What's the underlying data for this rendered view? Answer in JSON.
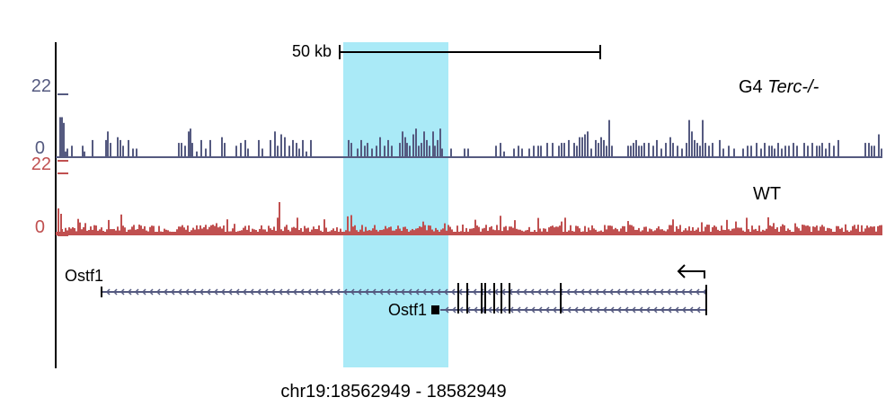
{
  "scale_bar": {
    "label": "50 kb"
  },
  "tracks": [
    {
      "name": "G4",
      "name_italic": "Terc-/-",
      "y_max_label": "22",
      "y_min_label": "0",
      "color": "#555a80",
      "y_max": 22,
      "bars": [
        [
          66,
          14
        ],
        [
          68,
          14
        ],
        [
          70,
          12
        ],
        [
          72,
          2
        ],
        [
          74,
          3
        ],
        [
          79,
          4
        ],
        [
          91,
          4
        ],
        [
          93,
          2
        ],
        [
          102,
          6
        ],
        [
          117,
          6
        ],
        [
          119,
          9
        ],
        [
          122,
          5
        ],
        [
          130,
          7
        ],
        [
          133,
          6
        ],
        [
          136,
          4
        ],
        [
          142,
          6
        ],
        [
          147,
          3
        ],
        [
          151,
          3
        ],
        [
          198,
          5
        ],
        [
          201,
          5
        ],
        [
          205,
          4
        ],
        [
          209,
          9
        ],
        [
          211,
          10
        ],
        [
          213,
          5
        ],
        [
          218,
          2
        ],
        [
          223,
          6
        ],
        [
          228,
          3
        ],
        [
          233,
          6
        ],
        [
          246,
          7
        ],
        [
          249,
          5
        ],
        [
          262,
          4
        ],
        [
          267,
          5
        ],
        [
          272,
          6
        ],
        [
          275,
          3
        ],
        [
          287,
          6
        ],
        [
          291,
          3
        ],
        [
          300,
          6
        ],
        [
          305,
          9
        ],
        [
          308,
          4
        ],
        [
          312,
          8
        ],
        [
          316,
          7
        ],
        [
          321,
          4
        ],
        [
          325,
          6
        ],
        [
          329,
          5
        ],
        [
          332,
          3
        ],
        [
          336,
          6
        ],
        [
          340,
          2
        ],
        [
          345,
          6
        ],
        [
          387,
          6
        ],
        [
          390,
          5
        ],
        [
          397,
          3
        ],
        [
          401,
          6
        ],
        [
          405,
          4
        ],
        [
          408,
          5
        ],
        [
          413,
          3
        ],
        [
          418,
          4
        ],
        [
          422,
          7
        ],
        [
          427,
          4
        ],
        [
          431,
          6
        ],
        [
          435,
          4
        ],
        [
          444,
          5
        ],
        [
          447,
          9
        ],
        [
          450,
          7
        ],
        [
          452,
          5
        ],
        [
          455,
          4
        ],
        [
          459,
          8
        ],
        [
          462,
          10
        ],
        [
          465,
          4
        ],
        [
          468,
          5
        ],
        [
          471,
          9
        ],
        [
          474,
          6
        ],
        [
          477,
          4
        ],
        [
          481,
          9
        ],
        [
          483,
          4
        ],
        [
          486,
          6
        ],
        [
          489,
          10
        ],
        [
          491,
          3
        ],
        [
          501,
          3
        ],
        [
          516,
          3
        ],
        [
          520,
          3
        ],
        [
          551,
          4
        ],
        [
          556,
          5
        ],
        [
          560,
          2
        ],
        [
          571,
          3
        ],
        [
          576,
          4
        ],
        [
          580,
          3
        ],
        [
          588,
          3
        ],
        [
          593,
          4
        ],
        [
          598,
          4
        ],
        [
          601,
          4
        ],
        [
          608,
          5
        ],
        [
          614,
          5
        ],
        [
          621,
          4
        ],
        [
          624,
          5
        ],
        [
          627,
          5
        ],
        [
          632,
          6
        ],
        [
          638,
          5
        ],
        [
          641,
          4
        ],
        [
          644,
          7
        ],
        [
          647,
          7
        ],
        [
          650,
          8
        ],
        [
          653,
          9
        ],
        [
          657,
          3
        ],
        [
          662,
          6
        ],
        [
          665,
          5
        ],
        [
          668,
          7
        ],
        [
          671,
          6
        ],
        [
          674,
          4
        ],
        [
          677,
          13
        ],
        [
          680,
          4
        ],
        [
          698,
          4
        ],
        [
          701,
          4
        ],
        [
          704,
          5
        ],
        [
          707,
          6
        ],
        [
          710,
          4
        ],
        [
          713,
          4
        ],
        [
          716,
          5
        ],
        [
          721,
          5
        ],
        [
          726,
          4
        ],
        [
          730,
          6
        ],
        [
          735,
          3
        ],
        [
          740,
          5
        ],
        [
          745,
          7
        ],
        [
          748,
          5
        ],
        [
          753,
          4
        ],
        [
          758,
          3
        ],
        [
          763,
          5
        ],
        [
          766,
          13
        ],
        [
          769,
          9
        ],
        [
          772,
          6
        ],
        [
          775,
          5
        ],
        [
          778,
          4
        ],
        [
          781,
          13
        ],
        [
          784,
          5
        ],
        [
          788,
          4
        ],
        [
          792,
          5
        ],
        [
          800,
          6
        ],
        [
          804,
          3
        ],
        [
          810,
          4
        ],
        [
          816,
          3
        ],
        [
          826,
          3
        ],
        [
          831,
          4
        ],
        [
          835,
          4
        ],
        [
          841,
          5
        ],
        [
          846,
          3
        ],
        [
          850,
          5
        ],
        [
          855,
          4
        ],
        [
          858,
          4
        ],
        [
          861,
          3
        ],
        [
          865,
          5
        ],
        [
          869,
          3
        ],
        [
          873,
          4
        ],
        [
          877,
          4
        ],
        [
          882,
          5
        ],
        [
          886,
          4
        ],
        [
          894,
          5
        ],
        [
          898,
          4
        ],
        [
          903,
          5
        ],
        [
          908,
          4
        ],
        [
          911,
          4
        ],
        [
          914,
          5
        ],
        [
          918,
          3
        ],
        [
          922,
          5
        ],
        [
          927,
          4
        ],
        [
          932,
          6
        ],
        [
          962,
          5
        ],
        [
          966,
          5
        ],
        [
          969,
          4
        ],
        [
          972,
          4
        ],
        [
          977,
          8
        ],
        [
          980,
          3
        ]
      ]
    },
    {
      "name": "WT",
      "y_max_label": "22",
      "y_min_label": "0",
      "color": "#c05050",
      "y_max": 22
    }
  ],
  "genes": [
    {
      "name": "Ostf1",
      "name_position": "above-left"
    },
    {
      "name": "Ostf1",
      "name_position": "left"
    }
  ],
  "highlight": {
    "color": "#aaeaf7"
  },
  "coordinates": "chr19:18562949 - 18582949"
}
